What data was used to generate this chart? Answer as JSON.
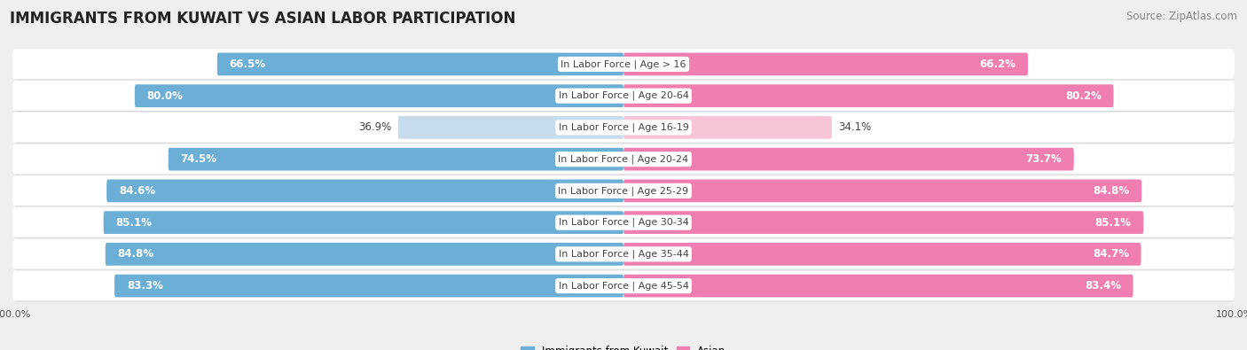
{
  "title": "IMMIGRANTS FROM KUWAIT VS ASIAN LABOR PARTICIPATION",
  "source": "Source: ZipAtlas.com",
  "categories": [
    "In Labor Force | Age > 16",
    "In Labor Force | Age 20-64",
    "In Labor Force | Age 16-19",
    "In Labor Force | Age 20-24",
    "In Labor Force | Age 25-29",
    "In Labor Force | Age 30-34",
    "In Labor Force | Age 35-44",
    "In Labor Force | Age 45-54"
  ],
  "kuwait_values": [
    66.5,
    80.0,
    36.9,
    74.5,
    84.6,
    85.1,
    84.8,
    83.3
  ],
  "asian_values": [
    66.2,
    80.2,
    34.1,
    73.7,
    84.8,
    85.1,
    84.7,
    83.4
  ],
  "kuwait_color": "#6BAED6",
  "kuwait_color_light": "#C6DCEC",
  "asian_color": "#F07EB0",
  "asian_color_light": "#F7C4D8",
  "bar_height": 0.72,
  "background_color": "#EFEFEF",
  "row_bg_color": "#FFFFFF",
  "row_shadow_color": "#D8D8D8",
  "label_color_dark": "#444444",
  "max_val": 100.0,
  "title_fontsize": 12,
  "source_fontsize": 8.5,
  "bar_label_fontsize": 8.5,
  "category_fontsize": 8,
  "legend_fontsize": 8.5,
  "axis_label_fontsize": 8
}
